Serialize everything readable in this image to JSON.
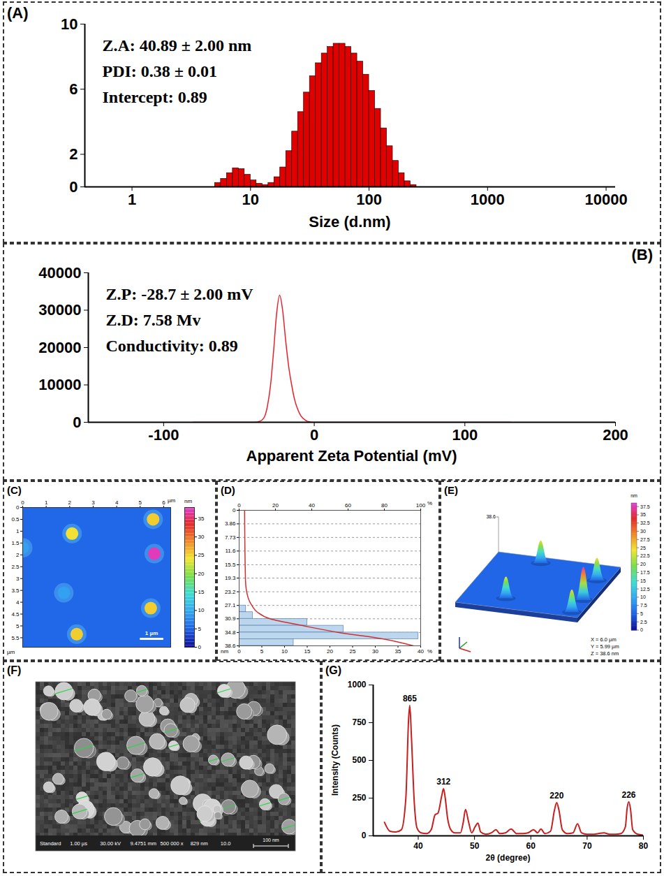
{
  "chart_data": [
    {
      "panel_label": "(A)",
      "type": "histogram",
      "xlabel": "Size (d.nm)",
      "annotations": [
        "Z.A: 40.89 ± 2.00 nm",
        "PDI: 0.38 ± 0.01",
        "Intercept: 0.89"
      ],
      "bins": [
        5.01,
        5.62,
        6.31,
        7.08,
        7.94,
        8.91,
        10,
        11.22,
        12.59,
        14.13,
        15.85,
        17.78,
        19.95,
        22.39,
        25.12,
        28.18,
        31.62,
        35.48,
        39.81,
        44.67,
        50.12,
        56.23,
        63.1,
        70.79,
        79.43,
        89.13,
        100,
        112.2,
        125.9,
        141.3,
        158.5,
        177.8,
        199.5,
        223.9,
        251.2
      ],
      "values": [
        0.25,
        0.5,
        0.85,
        1.15,
        1.1,
        0.75,
        0.4,
        0.2,
        0.12,
        0.25,
        0.6,
        1.2,
        2.2,
        3.4,
        4.6,
        5.8,
        6.8,
        7.6,
        8.2,
        8.6,
        8.8,
        8.8,
        8.6,
        8.2,
        7.7,
        6.9,
        5.9,
        4.8,
        3.6,
        2.5,
        1.6,
        0.85,
        0.35,
        0.12
      ],
      "color": "#e00000",
      "log": "x",
      "xlim": [
        0.4,
        12000
      ],
      "xticks": [
        1,
        10,
        100,
        1000,
        10000
      ],
      "ylim": [
        0,
        10
      ],
      "yticks": [
        0,
        2,
        6,
        10
      ]
    },
    {
      "panel_label": "(B)",
      "type": "line",
      "xlabel": "Apparent Zeta Potential (mV)",
      "annotations": [
        "Z.P: -28.7 ± 2.00 mV",
        "Z.D: 7.58 Mv",
        "Conductivity: 0.89"
      ],
      "x": [
        -80,
        -40,
        -36,
        -33,
        -31,
        -29,
        -27,
        -25,
        -23,
        -21,
        -19,
        -17,
        -15,
        -13,
        -11,
        -9,
        -6,
        -3,
        0,
        130
      ],
      "values": [
        0,
        0,
        300,
        1500,
        4500,
        10000,
        19000,
        29000,
        34000,
        30000,
        22000,
        15000,
        10000,
        6000,
        3500,
        1800,
        600,
        100,
        0,
        0
      ],
      "color": "#e8202a",
      "xlim": [
        -150,
        200
      ],
      "xticks": [
        -100,
        0,
        100,
        200
      ],
      "ylim": [
        0,
        40000
      ],
      "yticks": [
        0,
        10000,
        20000,
        30000,
        40000
      ]
    },
    {
      "panel_label": "(C)",
      "type": "heatmap",
      "xlabel": "µm",
      "ylabel": "µm",
      "xlim": [
        0,
        6.3
      ],
      "xticks": [
        0,
        1,
        2,
        3,
        4,
        5,
        6
      ],
      "ylim": [
        0,
        5.9
      ],
      "yticks": [
        0,
        0.5,
        1,
        1.5,
        2,
        2.5,
        3,
        3.5,
        4,
        4.5,
        5,
        5.5
      ],
      "base_value": 5,
      "features": {
        "x": [
          2.1,
          5.55,
          5.6,
          1.75,
          5.45,
          2.3,
          0
        ],
        "y": [
          1.1,
          0.5,
          1.95,
          3.6,
          4.25,
          5.35,
          1.7
        ],
        "values": [
          24,
          25,
          37,
          9,
          25,
          25,
          9
        ]
      },
      "colorbar": {
        "range": [
          0,
          38
        ],
        "ticks": [
          0,
          5,
          10,
          15,
          20,
          25,
          30,
          35
        ],
        "label": "nm"
      },
      "scale_bar": {
        "length": 1,
        "label": "1 µm"
      }
    },
    {
      "panel_label": "(D)",
      "type": "histogram",
      "orientation": "horizontal",
      "grid": true,
      "ylabel": "nm",
      "xlabel": "%",
      "bins": [
        27.1,
        29,
        30.9,
        32.85,
        34.8,
        36.7,
        38.6
      ],
      "values": [
        1.5,
        3,
        15,
        23,
        39.5,
        12
      ],
      "color": "#bcd6ee",
      "ylim": [
        0,
        38.6
      ],
      "yticks": [
        0,
        3.86,
        7.73,
        11.6,
        15.5,
        19.3,
        23.2,
        27.1,
        30.9,
        34.8,
        38.6
      ],
      "xlim": [
        0,
        40
      ],
      "xticks": [
        0,
        5,
        10,
        15,
        20,
        25,
        30,
        35,
        40
      ],
      "x2lim": [
        0,
        100
      ],
      "x2ticks": [
        0,
        20,
        40,
        60,
        80,
        100
      ],
      "x2label": "%",
      "cumulative": {
        "y": [
          0,
          20,
          25,
          27.1,
          29,
          30.9,
          32.85,
          34.8,
          36.7,
          38.6
        ],
        "values": [
          3,
          3.5,
          5,
          7,
          10,
          17,
          35,
          55,
          80,
          96
        ],
        "color": "#d03030",
        "axis": "x2"
      }
    },
    {
      "panel_label": "(E)",
      "type": "surface_3d",
      "xlim": [
        0,
        6
      ],
      "ylim": [
        0,
        5.99
      ],
      "zlim": [
        0,
        38.6
      ],
      "base_value": 5,
      "features": {
        "x": [
          2.1,
          5.55,
          5.6,
          5.45,
          2.3
        ],
        "y": [
          1.1,
          0.5,
          1.95,
          4.25,
          5.35
        ],
        "values": [
          24,
          25,
          37,
          25,
          25
        ]
      },
      "colorbar": {
        "range": [
          0,
          38.6
        ],
        "ticks": [
          0,
          2.5,
          5,
          7.5,
          10,
          12.5,
          15,
          17.5,
          20,
          22.5,
          25,
          27.5,
          30,
          32.5,
          35,
          37.5
        ],
        "label": "nm"
      },
      "dimensions": [
        "X = 6.0 µm",
        "Y = 5.99 µm",
        "Z = 38.6 nm"
      ]
    },
    {
      "panel_label": "(F)",
      "type": "image",
      "info_bar": [
        "Standard",
        "1.00 µs",
        "30.00 kV",
        "9.4751 mm",
        "500 000 x",
        "829 nm",
        "10.0"
      ],
      "scale_bar": "100 nm"
    },
    {
      "panel_label": "(G)",
      "type": "line",
      "xlabel": "2θ (degree)",
      "ylabel": "Intensity (Counts)",
      "x": [
        34,
        35,
        36,
        37,
        37.8,
        38.3,
        38.5,
        38.8,
        39.3,
        39.8,
        40.5,
        41.5,
        42.3,
        43,
        43.5,
        44.2,
        44.5,
        44.8,
        45.2,
        45.8,
        46.5,
        47.5,
        48,
        48.4,
        48.9,
        49.5,
        50.1,
        50.6,
        51.1,
        52,
        53,
        53.8,
        54.5,
        55.5,
        56.5,
        57.5,
        58.5,
        59.5,
        60.5,
        61.2,
        61.8,
        62.5,
        63.5,
        64.2,
        64.6,
        65,
        65.6,
        66.5,
        67.5,
        68.3,
        69,
        70,
        71,
        72,
        73,
        74,
        75,
        76,
        76.8,
        77.1,
        77.4,
        77.7,
        78.1,
        79,
        80
      ],
      "values": [
        90,
        30,
        25,
        40,
        250,
        780,
        865,
        650,
        220,
        50,
        20,
        15,
        40,
        140,
        150,
        270,
        312,
        250,
        120,
        40,
        20,
        20,
        90,
        175,
        100,
        20,
        60,
        85,
        25,
        10,
        20,
        40,
        15,
        20,
        45,
        15,
        15,
        20,
        40,
        20,
        45,
        15,
        30,
        170,
        220,
        170,
        40,
        15,
        20,
        80,
        20,
        10,
        10,
        15,
        20,
        10,
        10,
        15,
        60,
        180,
        226,
        180,
        40,
        10,
        5
      ],
      "color": "#c81e1e",
      "xlim": [
        32,
        80
      ],
      "xticks": [
        40,
        50,
        60,
        70,
        80
      ],
      "ylim": [
        0,
        1000
      ],
      "yticks": [
        0,
        250,
        500,
        750,
        1000
      ],
      "peaks": {
        "x": [
          38.5,
          44.5,
          64.6,
          77.4
        ],
        "values": [
          865,
          312,
          220,
          226
        ]
      }
    }
  ]
}
